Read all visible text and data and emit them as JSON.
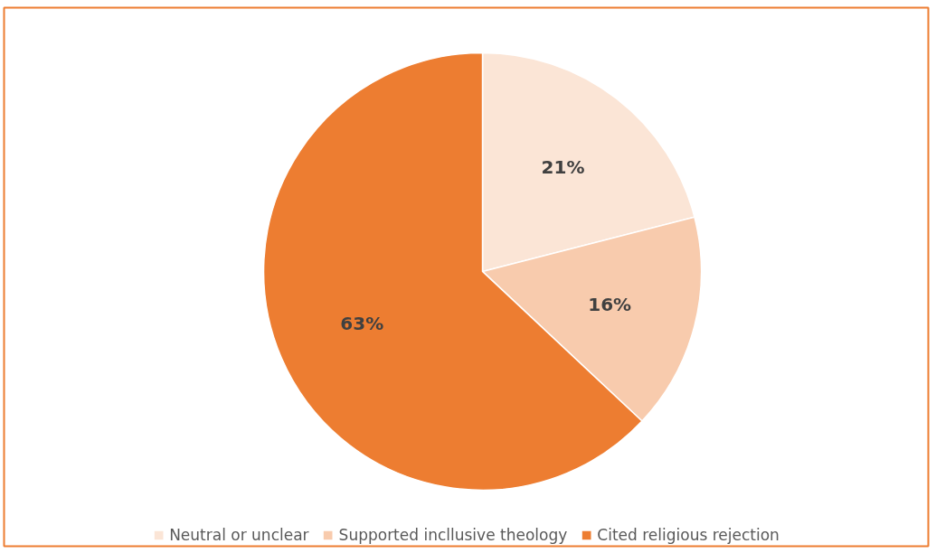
{
  "chart_data": {
    "type": "pie",
    "categories": [
      "Neutral or unclear",
      "Supported incllusive theology",
      "Cited religious rejection"
    ],
    "values": [
      21,
      16,
      63
    ],
    "colors": [
      "#fbe5d6",
      "#f8cbad",
      "#ed7d31"
    ],
    "value_labels": [
      "21%",
      "16%",
      "63%"
    ],
    "legend": "bottom"
  }
}
